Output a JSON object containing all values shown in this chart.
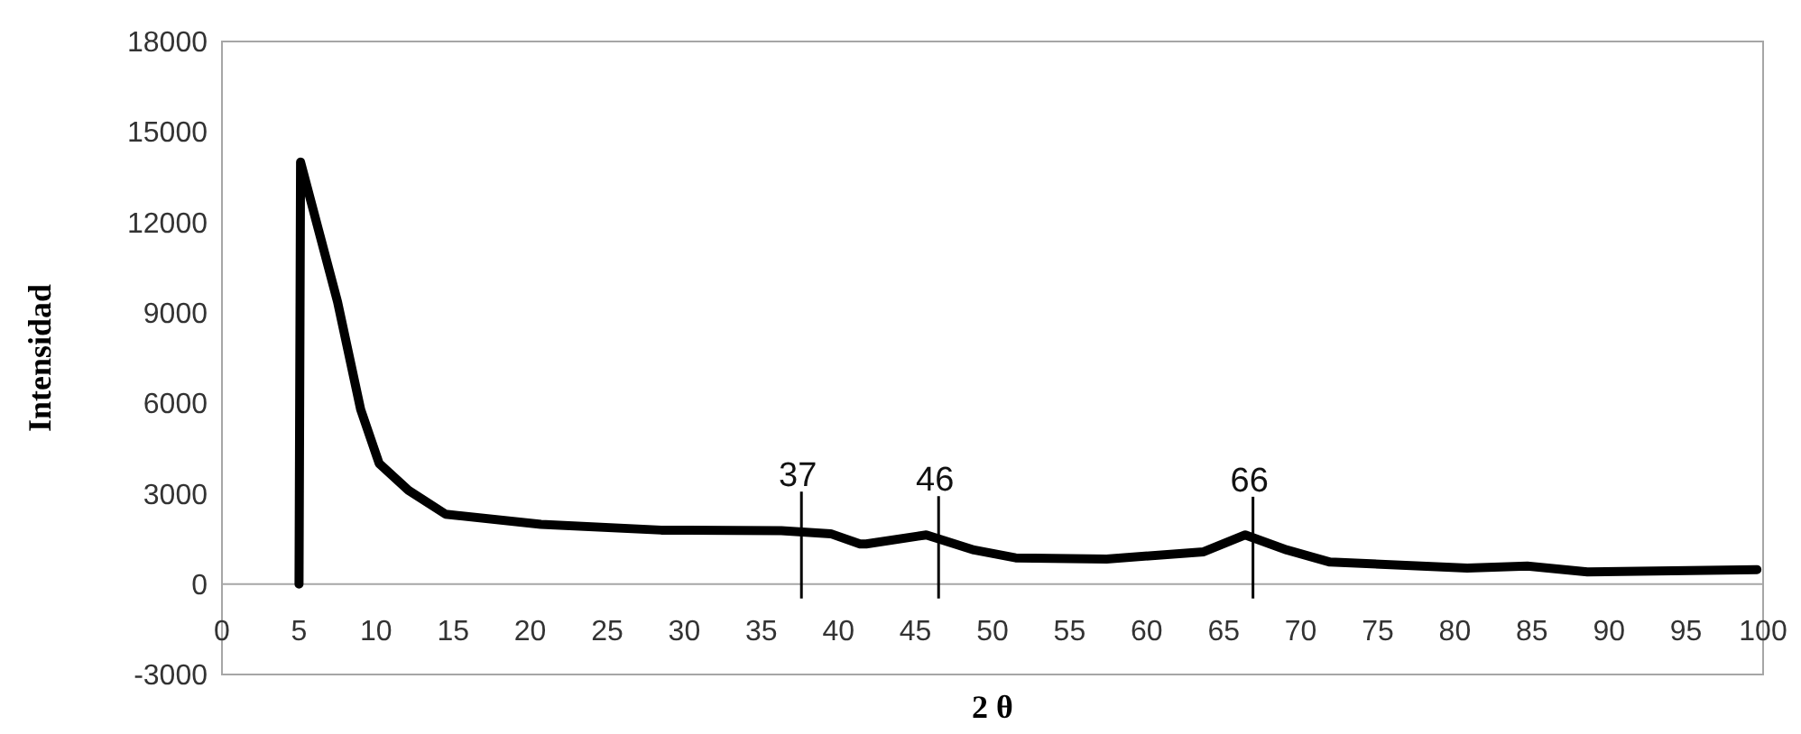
{
  "chart_data": {
    "type": "line",
    "xlabel": "2 θ",
    "ylabel": "Intensidad",
    "x": [
      5,
      5.1,
      7.5,
      9.0,
      10.2,
      12.1,
      14.5,
      20.7,
      28.5,
      36.3,
      39.5,
      41.4,
      41.8,
      45.7,
      48.8,
      51.5,
      57.4,
      63.7,
      66.4,
      69.1,
      71.9,
      80.8,
      84.7,
      88.6,
      99.6
    ],
    "series": [
      {
        "color": "#000000",
        "values": [
          0,
          14000,
          9360,
          5790,
          4000,
          3110,
          2320,
          1980,
          1790,
          1770,
          1670,
          1330,
          1330,
          1630,
          1130,
          870,
          830,
          1070,
          1630,
          1130,
          730,
          530,
          600,
          400,
          480
        ]
      }
    ],
    "xlim": [
      0,
      100
    ],
    "xticks": [
      0,
      5,
      10,
      15,
      20,
      25,
      30,
      35,
      40,
      45,
      50,
      55,
      60,
      65,
      70,
      75,
      80,
      85,
      90,
      95,
      100
    ],
    "ylim": [
      -3000,
      18000
    ],
    "yticks": [
      -3000,
      0,
      3000,
      6000,
      9000,
      12000,
      15000,
      18000
    ],
    "marker": "none",
    "line_style": "solid",
    "annotations": [
      {
        "text": "37",
        "x": 37.6,
        "y": 1750
      },
      {
        "text": "46",
        "x": 46.5,
        "y": 1600
      },
      {
        "text": "66",
        "x": 66.9,
        "y": 1580
      }
    ]
  }
}
